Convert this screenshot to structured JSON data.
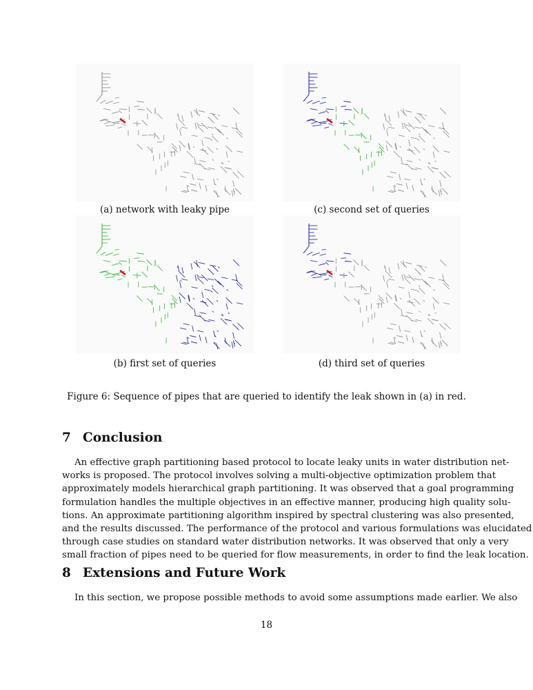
{
  "figure": {
    "panels": [
      {
        "id": "a",
        "caption": "(a) network with leaky pipe",
        "colors": {
          "left": "#888888",
          "mid": "#888888",
          "right": "#888888"
        }
      },
      {
        "id": "c",
        "caption": "(c) second set of queries",
        "colors": {
          "left": "#1a1aa0",
          "mid": "#2db52d",
          "right": "#888888"
        }
      },
      {
        "id": "b",
        "caption": "(b) first set of queries",
        "colors": {
          "left": "#2db52d",
          "mid": "#2db52d",
          "right": "#1a1aa0"
        }
      },
      {
        "id": "d",
        "caption": "(d) third set of queries",
        "colors": {
          "left": "#1a1aa0",
          "mid": "#888888",
          "right": "#888888"
        }
      }
    ],
    "caption": "Figure 6: Sequence of pipes that are queried to identify the leak shown in (a) in red.",
    "leak_color": "#d01010"
  },
  "sections": [
    {
      "number": "7",
      "title": "Conclusion",
      "lines": [
        "An effective graph partitioning based protocol to locate leaky units in water distribution net-",
        "works is proposed.  The protocol involves solving a multi-objective optimization problem that",
        "approximately models hierarchical graph partitioning.  It was observed that a goal programming",
        "formulation handles the multiple objectives in an effective manner, producing high quality solu-",
        "tions.  An approximate partitioning algorithm inspired by spectral clustering was also presented,",
        "and the results discussed.  The performance of the protocol and various formulations was elucidated",
        "through case studies on standard water distribution networks.  It was observed that only a very",
        "small fraction of pipes need to be queried for flow measurements, in order to find the leak location."
      ]
    },
    {
      "number": "8",
      "title": "Extensions and Future Work",
      "lines": [
        "In this section, we propose possible methods to avoid some assumptions made earlier.  We also"
      ]
    }
  ],
  "page_number": "18"
}
